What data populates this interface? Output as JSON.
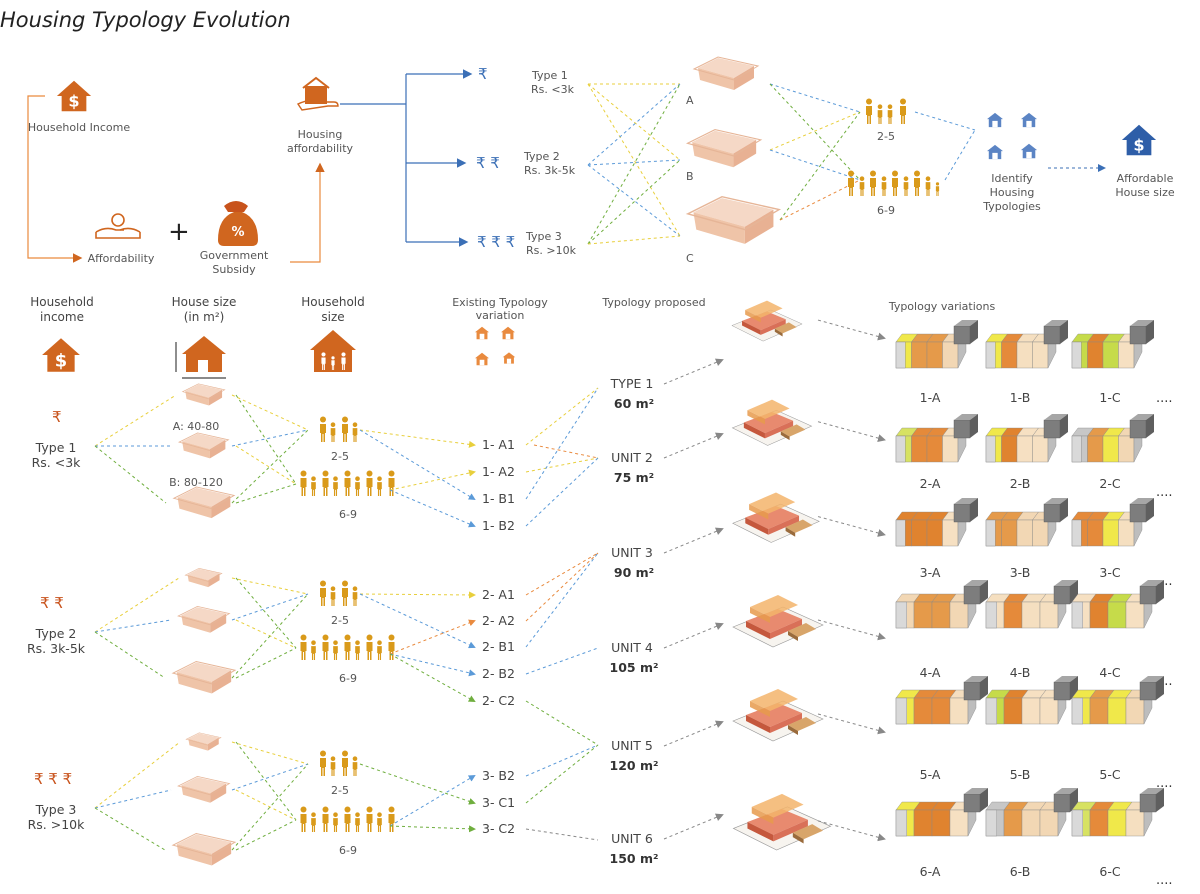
{
  "title": "Housing Typology Evolution",
  "colors": {
    "orange": "#d0661f",
    "gold": "#d99a1a",
    "blue": "#3b6fb6",
    "yellow_dash": "#e8cf3c",
    "green_dash": "#6fae3e",
    "blue_dash": "#5b9ad8",
    "orange_dash": "#e98a3e",
    "grey_dash": "#888888"
  },
  "top": {
    "household_income": "Household Income",
    "affordability": "Affordability",
    "plus": "+",
    "government_subsidy": "Government Subsidy",
    "housing_affordability": "Housing affordability",
    "types": [
      {
        "name": "Type 1",
        "range": "Rs. <3k",
        "rupees": "₹"
      },
      {
        "name": "Type 2",
        "range": "Rs. 3k-5k",
        "rupees": "₹ ₹"
      },
      {
        "name": "Type 3",
        "range": "Rs. >10k",
        "rupees": "₹ ₹ ₹"
      }
    ],
    "houses": [
      "A",
      "B",
      "C"
    ],
    "family_sizes": [
      "2-5",
      "6-9"
    ],
    "identify": "Identify Housing Typologies",
    "affordable": "Affordable House size"
  },
  "headers": {
    "household_income": "Household income",
    "house_size": "House size (in m²)",
    "household_size": "Household size",
    "existing": "Existing Typology variation",
    "proposed": "Typology proposed",
    "variations": "Typology variations"
  },
  "lower": {
    "types": [
      {
        "rupees": "₹",
        "name": "Type 1",
        "range": "Rs. <3k"
      },
      {
        "rupees": "₹ ₹",
        "name": "Type 2",
        "range": "Rs. 3k-5k"
      },
      {
        "rupees": "₹ ₹ ₹",
        "name": "Type 3",
        "range": "Rs. >10k"
      }
    ],
    "house_size_labels": [
      "A: 40-80",
      "B: 80-120"
    ],
    "household_sizes": [
      "2-5",
      "6-9",
      "2-5",
      "6-9",
      "2-5",
      "6-9"
    ],
    "existing_codes": [
      "1- A1",
      "1- A2",
      "1- B1",
      "1- B2",
      "2- A1",
      "2- A2",
      "2- B1",
      "2- B2",
      "2- C2",
      "3- B2",
      "3- C1",
      "3- C2"
    ],
    "units": [
      {
        "name": "TYPE 1",
        "area": "60 m²"
      },
      {
        "name": "UNIT 2",
        "area": "75 m²"
      },
      {
        "name": "UNIT 3",
        "area": "90 m²"
      },
      {
        "name": "UNIT 4",
        "area": "105 m²"
      },
      {
        "name": "UNIT 5",
        "area": "120 m²"
      },
      {
        "name": "UNIT 6",
        "area": "150 m²"
      }
    ],
    "variations": [
      [
        "1-A",
        "1-B",
        "1-C"
      ],
      [
        "2-A",
        "2-B",
        "2-C"
      ],
      [
        "3-A",
        "3-B",
        "3-C"
      ],
      [
        "4-A",
        "4-B",
        "4-C"
      ],
      [
        "5-A",
        "5-B",
        "5-C"
      ],
      [
        "6-A",
        "6-B",
        "6-C"
      ]
    ],
    "ellipsis": "...."
  }
}
